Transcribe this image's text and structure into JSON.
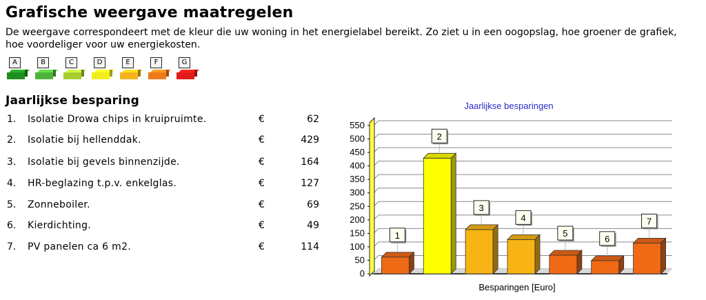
{
  "page": {
    "title": "Grafische weergave maatregelen",
    "intro": "De weergave correspondeert met de kleur die uw woning in het energielabel bereikt. Zo ziet u in een oogopslag, hoe groener de grafiek, hoe voordeliger voor uw energiekosten."
  },
  "energy_labels": [
    {
      "letter": "A",
      "color": "#1f8f1f"
    },
    {
      "letter": "B",
      "color": "#4fb33a"
    },
    {
      "letter": "C",
      "color": "#a5cd32"
    },
    {
      "letter": "D",
      "color": "#f2ee1d"
    },
    {
      "letter": "E",
      "color": "#f5b21c"
    },
    {
      "letter": "F",
      "color": "#ee7a1a"
    },
    {
      "letter": "G",
      "color": "#e01b1b"
    }
  ],
  "savings": {
    "heading": "Jaarlijkse besparing",
    "currency": "€",
    "items": [
      {
        "num": "1.",
        "label": "Isolatie Drowa chips in kruipruimte.",
        "amount": "62"
      },
      {
        "num": "2.",
        "label": "Isolatie bij hellenddak.",
        "amount": "429"
      },
      {
        "num": "3.",
        "label": "Isolatie bij gevels binnenzijde.",
        "amount": "164"
      },
      {
        "num": "4.",
        "label": "HR-beglazing t.p.v. enkelglas.",
        "amount": "127"
      },
      {
        "num": "5.",
        "label": "Zonneboiler.",
        "amount": "69"
      },
      {
        "num": "6.",
        "label": "Kierdichting.",
        "amount": "49"
      },
      {
        "num": "7.",
        "label": "PV panelen ca 6 m2.",
        "amount": "114"
      }
    ]
  },
  "chart_data": {
    "type": "bar",
    "title": "Jaarlijkse besparingen",
    "xlabel": "Besparingen [Euro]",
    "ylabel": "",
    "categories": [
      "1",
      "2",
      "3",
      "4",
      "5",
      "6",
      "7"
    ],
    "values": [
      62,
      429,
      164,
      127,
      69,
      49,
      114
    ],
    "ylim": [
      0,
      550
    ],
    "yticks": [
      0,
      50,
      100,
      150,
      200,
      250,
      300,
      350,
      400,
      450,
      500,
      550
    ],
    "grid": true,
    "bar_colors": [
      "#f06a16",
      "#ffff00",
      "#f8b414",
      "#f8b414",
      "#f06a16",
      "#f06a16",
      "#f06a16"
    ],
    "title_color": "#2b2bc8"
  }
}
